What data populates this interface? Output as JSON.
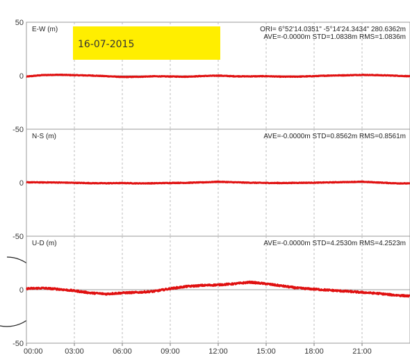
{
  "date_badge": "16-07-2015",
  "chart_data": {
    "type": "line",
    "x_ticks": [
      "00:00",
      "03:00",
      "06:00",
      "09:00",
      "12:00",
      "15:00",
      "18:00",
      "21:00"
    ],
    "x_range_hours": [
      0,
      24
    ],
    "y_ticks": [
      "50",
      "0",
      "-50"
    ],
    "grid": "dashed vertical lines at each x tick, solid horizontal zero line in each panel",
    "series_color": "#e01010",
    "panels": [
      {
        "label": "E-W (m)",
        "ylim": [
          -50,
          50
        ],
        "ori_text": "ORI= 6°52'14.0351\"  -5°14'24.3434\" 280.6362m",
        "stats_text": "AVE=-0.0000m STD=1.0838m RMS=1.0836m",
        "x": [
          0,
          1,
          2,
          3,
          4,
          5,
          6,
          7,
          8,
          9,
          10,
          11,
          12,
          13,
          14,
          15,
          16,
          17,
          18,
          19,
          20,
          21,
          22,
          23,
          24
        ],
        "y": [
          -0.8,
          0.6,
          0.9,
          0.5,
          0.2,
          -0.4,
          -1.2,
          -1.0,
          -0.5,
          -0.7,
          -0.9,
          -0.3,
          0.1,
          -0.5,
          -0.6,
          -0.4,
          -0.9,
          -0.8,
          -0.4,
          0.2,
          0.4,
          0.8,
          0.5,
          0.1,
          -0.5
        ]
      },
      {
        "label": "N-S (m)",
        "ylim": [
          -50,
          50
        ],
        "stats_text": "AVE=-0.0000m STD=0.8562m RMS=0.8561m",
        "x": [
          0,
          1,
          2,
          3,
          4,
          5,
          6,
          7,
          8,
          9,
          10,
          11,
          12,
          13,
          14,
          15,
          16,
          17,
          18,
          19,
          20,
          21,
          22,
          23,
          24
        ],
        "y": [
          0.4,
          0.3,
          0.2,
          -0.1,
          -0.4,
          -0.5,
          -0.3,
          -0.6,
          -0.5,
          -0.2,
          -0.1,
          0.3,
          0.9,
          0.4,
          0.0,
          -0.2,
          -0.3,
          -0.1,
          0.0,
          0.3,
          0.6,
          0.9,
          0.2,
          -0.5,
          -0.7
        ]
      },
      {
        "label": "U-D (m)",
        "ylim": [
          -50,
          50
        ],
        "stats_text": "AVE=-0.0000m STD=4.2530m RMS=4.2523m",
        "x": [
          0,
          1,
          2,
          3,
          4,
          5,
          6,
          7,
          8,
          9,
          10,
          11,
          12,
          13,
          14,
          15,
          16,
          17,
          18,
          19,
          20,
          21,
          22,
          23,
          24
        ],
        "y": [
          1.0,
          1.5,
          0.5,
          -1.0,
          -3.0,
          -4.0,
          -3.0,
          -2.5,
          -1.5,
          1.0,
          3.0,
          4.0,
          4.5,
          5.5,
          7.0,
          5.5,
          3.5,
          1.5,
          0.5,
          -0.5,
          -1.5,
          -2.5,
          -3.5,
          -5.0,
          -6.0
        ]
      }
    ]
  }
}
